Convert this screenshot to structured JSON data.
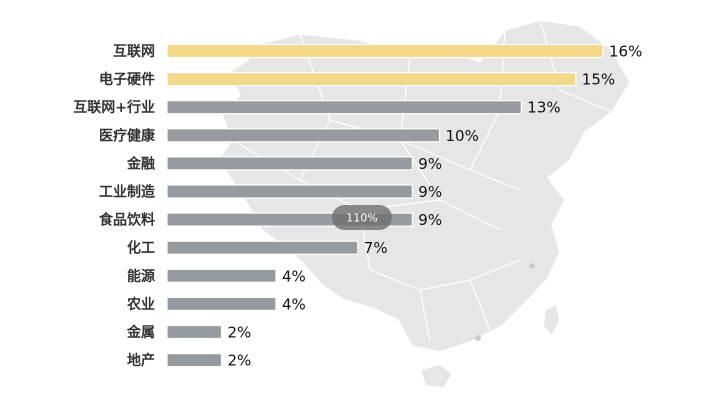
{
  "zoom_badge": "110%",
  "colors": {
    "highlight_bar": "#f4d88a",
    "default_bar": "#959ba0",
    "bar_stroke": "#ffffff",
    "map_fill": "#e6e6e6",
    "map_stroke": "#ffffff",
    "zoom_badge_bg": "#6e6e6e"
  },
  "chart_data": {
    "type": "bar",
    "orientation": "horizontal",
    "categories": [
      "互联网",
      "电子硬件",
      "互联网+行业",
      "医疗健康",
      "金融",
      "工业制造",
      "食品饮料",
      "化工",
      "能源",
      "农业",
      "金属",
      "地产"
    ],
    "values": [
      16,
      15,
      13,
      10,
      9,
      9,
      9,
      7,
      4,
      4,
      2,
      2
    ],
    "value_labels": [
      "16%",
      "15%",
      "13%",
      "10%",
      "9%",
      "9%",
      "9%",
      "7%",
      "4%",
      "4%",
      "2%",
      "2%"
    ],
    "highlighted": [
      "互联网",
      "电子硬件"
    ],
    "unit": "%",
    "xlim": [
      0,
      16
    ],
    "grid": false,
    "title": "",
    "xlabel": "",
    "ylabel": ""
  }
}
